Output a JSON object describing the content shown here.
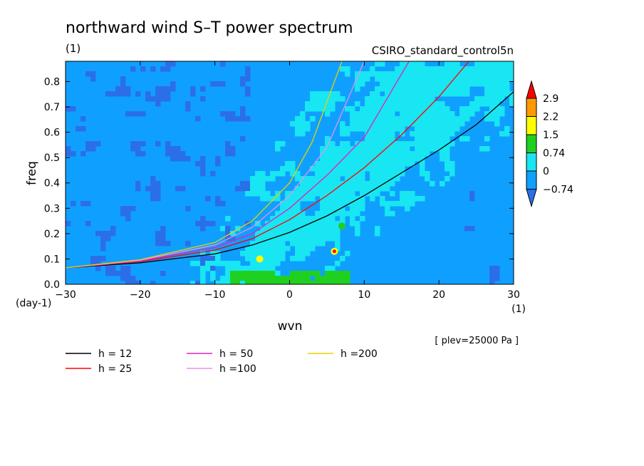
{
  "chart_data": {
    "type": "heatmap",
    "title": "northward wind S–T power spectrum",
    "units_label": "(1)",
    "model": "CSIRO_standard_control5n",
    "level_note": "[ plev=25000 Pa ]",
    "xlabel": "wvn",
    "ylabel": "freq",
    "x_units": "(1)",
    "y_units": "(day-1)",
    "xlim": [
      -30,
      30
    ],
    "ylim": [
      0,
      0.88
    ],
    "xticks": [
      "−30",
      "−20",
      "−10",
      "0",
      "10",
      "20",
      "30"
    ],
    "xtick_values": [
      -30,
      -20,
      -10,
      0,
      10,
      20,
      30
    ],
    "yticks": [
      "0.0",
      "0.1",
      "0.2",
      "0.3",
      "0.4",
      "0.5",
      "0.6",
      "0.7",
      "0.8"
    ],
    "ytick_values": [
      0,
      0.1,
      0.2,
      0.3,
      0.4,
      0.5,
      0.6,
      0.7,
      0.8
    ],
    "colorbar": {
      "labels": [
        "2.9",
        "2.2",
        "1.5",
        "0.74",
        "0",
        "−0.74"
      ],
      "levels": [
        -0.74,
        0,
        0.74,
        1.5,
        2.2,
        2.9
      ],
      "colors": [
        "#2b6fe8",
        "#0fa0ff",
        "#18e6f2",
        "#20d020",
        "#ffff00",
        "#ff9a00",
        "#ff0000"
      ]
    },
    "series": [
      {
        "name": "h = 12",
        "color": "#000000",
        "x": [
          -30,
          -20,
          -10,
          -5,
          0,
          5,
          10,
          15,
          20,
          25,
          30
        ],
        "y": [
          0.065,
          0.085,
          0.12,
          0.155,
          0.205,
          0.27,
          0.35,
          0.44,
          0.53,
          0.63,
          0.76
        ]
      },
      {
        "name": "h = 25",
        "color": "#ff0000",
        "x": [
          -30,
          -20,
          -10,
          -5,
          0,
          5,
          10,
          15,
          20,
          24
        ],
        "y": [
          0.065,
          0.09,
          0.135,
          0.18,
          0.255,
          0.35,
          0.46,
          0.59,
          0.74,
          0.88
        ]
      },
      {
        "name": "h = 50",
        "color": "#e020c0",
        "x": [
          -30,
          -20,
          -10,
          -5,
          0,
          5,
          10,
          16
        ],
        "y": [
          0.065,
          0.092,
          0.145,
          0.2,
          0.3,
          0.43,
          0.58,
          0.88
        ]
      },
      {
        "name": "h =100",
        "color": "#e890e8",
        "x": [
          -30,
          -20,
          -10,
          -5,
          0,
          5,
          10
        ],
        "y": [
          0.065,
          0.095,
          0.155,
          0.225,
          0.35,
          0.54,
          0.88
        ]
      },
      {
        "name": "h =200",
        "color": "#e6d200",
        "x": [
          -30,
          -20,
          -10,
          -5,
          0,
          3,
          7
        ],
        "y": [
          0.065,
          0.097,
          0.165,
          0.25,
          0.4,
          0.56,
          0.88
        ]
      }
    ]
  }
}
